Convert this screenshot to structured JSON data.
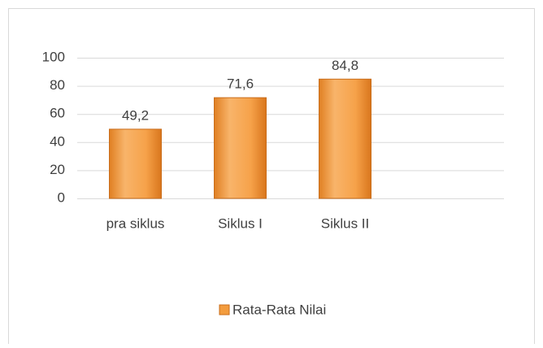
{
  "chart_data": {
    "type": "bar",
    "categories": [
      "pra siklus",
      "Siklus I",
      "Siklus II"
    ],
    "series": [
      {
        "name": "Rata-Rata Nilai",
        "color": "#f39c3e",
        "values": [
          49.2,
          71.6,
          84.8
        ],
        "value_labels": [
          "49,2",
          "71,6",
          "84,8"
        ]
      }
    ],
    "ylim": [
      0,
      100
    ],
    "yticks": [
      0,
      20,
      40,
      60,
      80,
      100
    ],
    "grid": true,
    "legend": "bottom"
  }
}
